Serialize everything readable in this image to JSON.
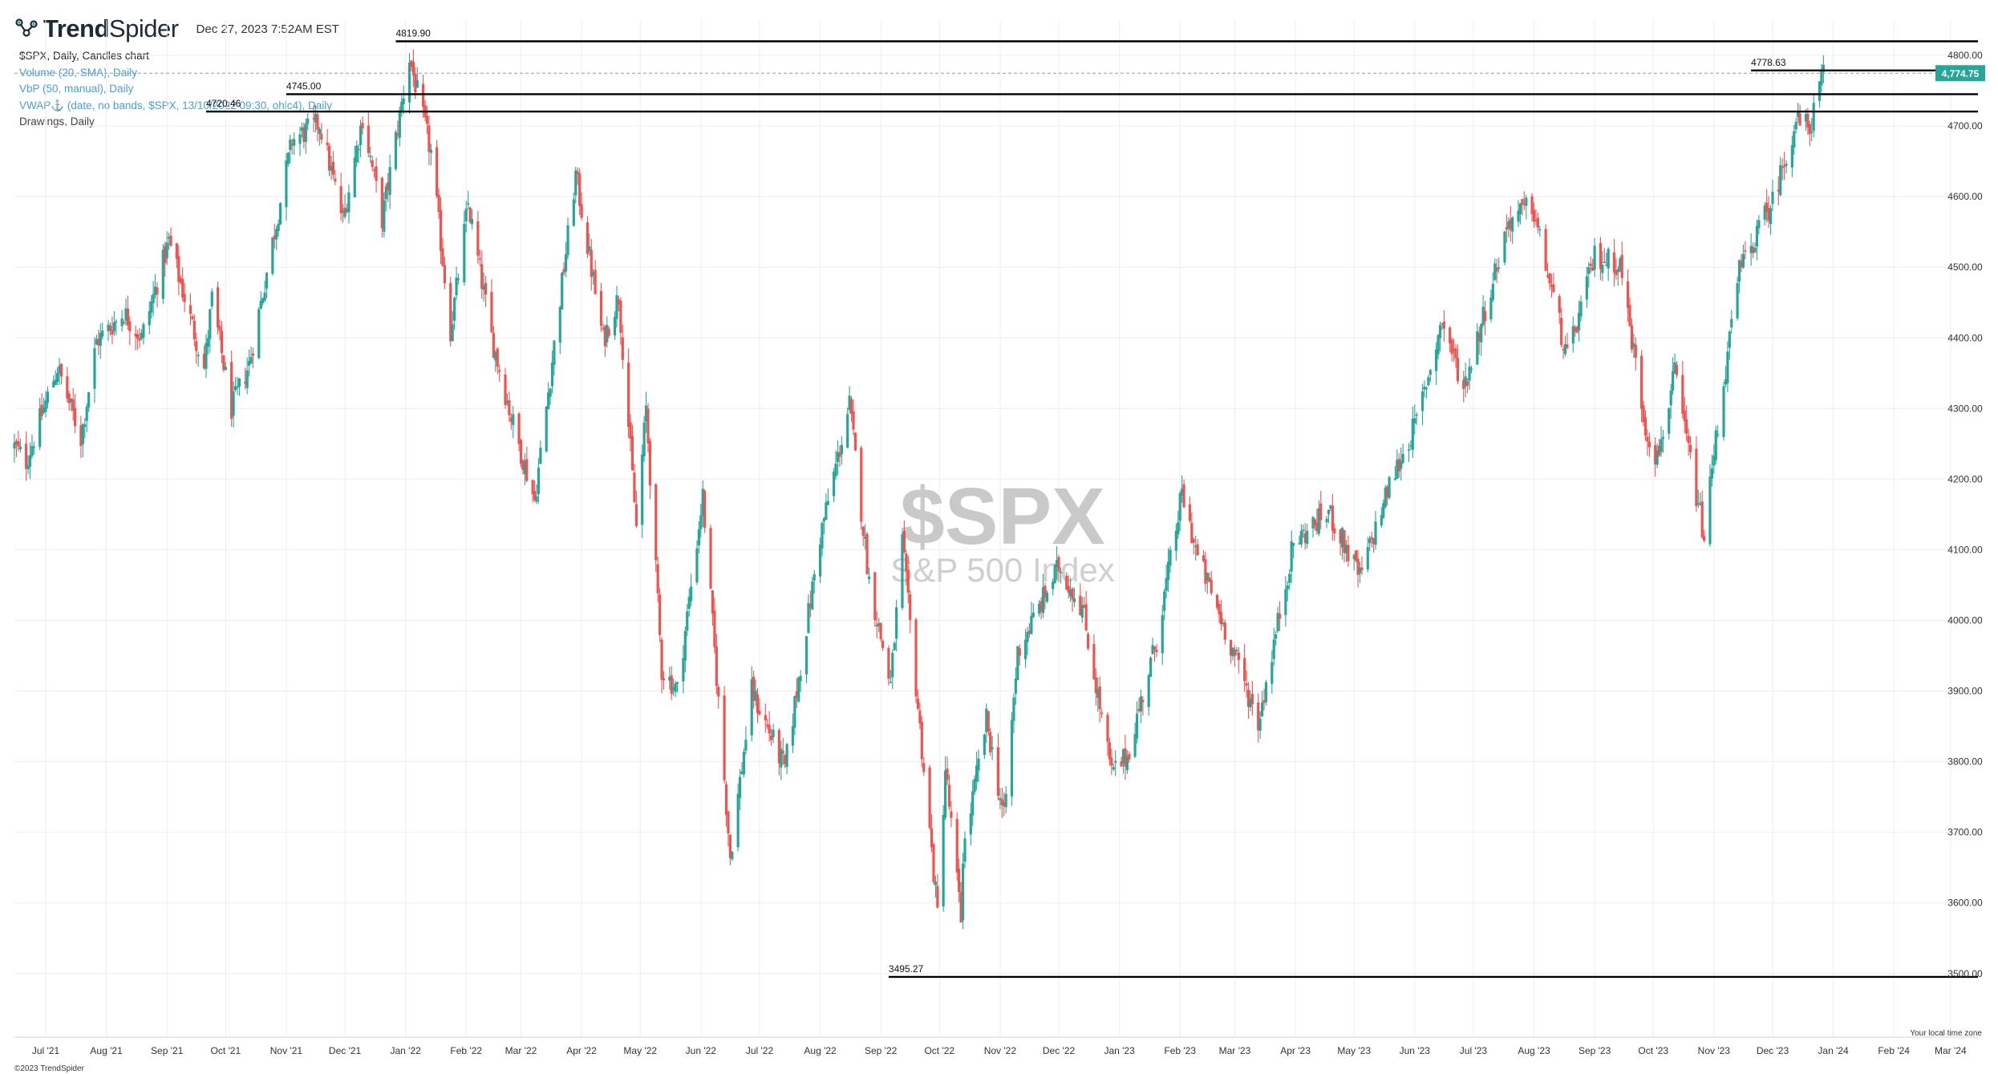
{
  "header": {
    "brand_prefix": "Trend",
    "brand_suffix": "Spider",
    "timestamp": "Dec 27, 2023 7:52AM EST"
  },
  "legend": {
    "main": "$SPX, Daily, Candles chart",
    "indicators": [
      "Volume (20, SMA), Daily",
      "VbP (50, manual), Daily",
      "VWAP⚓ (date, no bands, $SPX, 13/10/2022 09:30, ohlc4), Daily"
    ],
    "drawings": "Drawings, Daily"
  },
  "footer": {
    "copyright": "©2023 TrendSpider",
    "timezone_note": "Your local time zone"
  },
  "colors": {
    "up": "#26a69a",
    "down": "#ef5350",
    "price_badge": "#26a69a",
    "grid": "#eeeeee",
    "levels": "#000000"
  },
  "chart_data": {
    "type": "candlestick",
    "title": "$SPX",
    "subtitle": "S&P 500 Index",
    "interval": "Daily",
    "ylim": [
      3410,
      4850
    ],
    "y_ticks": [
      3500,
      3600,
      3700,
      3800,
      3900,
      4000,
      4100,
      4200,
      4300,
      4400,
      4500,
      4600,
      4700,
      4800
    ],
    "y_tick_labels": [
      "3500.00",
      "3600.00",
      "3700.00",
      "3800.00",
      "3900.00",
      "4000.00",
      "4100.00",
      "4200.00",
      "4300.00",
      "4400.00",
      "4500.00",
      "4600.00",
      "4700.00",
      "4800.00"
    ],
    "x_range": [
      "2021-06-15",
      "2024-03-15"
    ],
    "x_ticks": [
      {
        "date": "2021-07-01",
        "label": "Jul '21"
      },
      {
        "date": "2021-08-01",
        "label": "Aug '21"
      },
      {
        "date": "2021-09-01",
        "label": "Sep '21"
      },
      {
        "date": "2021-10-01",
        "label": "Oct '21"
      },
      {
        "date": "2021-11-01",
        "label": "Nov '21"
      },
      {
        "date": "2021-12-01",
        "label": "Dec '21"
      },
      {
        "date": "2022-01-01",
        "label": "Jan '22"
      },
      {
        "date": "2022-02-01",
        "label": "Feb '22"
      },
      {
        "date": "2022-03-01",
        "label": "Mar '22"
      },
      {
        "date": "2022-04-01",
        "label": "Apr '22"
      },
      {
        "date": "2022-05-01",
        "label": "May '22"
      },
      {
        "date": "2022-06-01",
        "label": "Jun '22"
      },
      {
        "date": "2022-07-01",
        "label": "Jul '22"
      },
      {
        "date": "2022-08-01",
        "label": "Aug '22"
      },
      {
        "date": "2022-09-01",
        "label": "Sep '22"
      },
      {
        "date": "2022-10-01",
        "label": "Oct '22"
      },
      {
        "date": "2022-11-01",
        "label": "Nov '22"
      },
      {
        "date": "2022-12-01",
        "label": "Dec '22"
      },
      {
        "date": "2023-01-01",
        "label": "Jan '23"
      },
      {
        "date": "2023-02-01",
        "label": "Feb '23"
      },
      {
        "date": "2023-03-01",
        "label": "Mar '23"
      },
      {
        "date": "2023-04-01",
        "label": "Apr '23"
      },
      {
        "date": "2023-05-01",
        "label": "May '23"
      },
      {
        "date": "2023-06-01",
        "label": "Jun '23"
      },
      {
        "date": "2023-07-01",
        "label": "Jul '23"
      },
      {
        "date": "2023-08-01",
        "label": "Aug '23"
      },
      {
        "date": "2023-09-01",
        "label": "Sep '23"
      },
      {
        "date": "2023-10-01",
        "label": "Oct '23"
      },
      {
        "date": "2023-11-01",
        "label": "Nov '23"
      },
      {
        "date": "2023-12-01",
        "label": "Dec '23"
      },
      {
        "date": "2024-01-01",
        "label": "Jan '24"
      },
      {
        "date": "2024-02-01",
        "label": "Feb '24"
      },
      {
        "date": "2024-03-01",
        "label": "Mar '24"
      }
    ],
    "last_price": 4774.75,
    "last_price_label": "4,774.75",
    "price_anchors": [
      {
        "date": "2021-06-15",
        "price": 4246
      },
      {
        "date": "2021-06-21",
        "price": 4225
      },
      {
        "date": "2021-07-07",
        "price": 4358
      },
      {
        "date": "2021-07-19",
        "price": 4258
      },
      {
        "date": "2021-07-27",
        "price": 4395
      },
      {
        "date": "2021-08-10",
        "price": 4436
      },
      {
        "date": "2021-08-19",
        "price": 4400
      },
      {
        "date": "2021-09-02",
        "price": 4537
      },
      {
        "date": "2021-09-20",
        "price": 4357
      },
      {
        "date": "2021-09-24",
        "price": 4455
      },
      {
        "date": "2021-10-04",
        "price": 4300
      },
      {
        "date": "2021-10-13",
        "price": 4363
      },
      {
        "date": "2021-11-04",
        "price": 4680
      },
      {
        "date": "2021-11-18",
        "price": 4704
      },
      {
        "date": "2021-11-30",
        "price": 4567
      },
      {
        "date": "2021-12-10",
        "price": 4712
      },
      {
        "date": "2021-12-20",
        "price": 4568
      },
      {
        "date": "2022-01-03",
        "price": 4796
      },
      {
        "date": "2022-01-14",
        "price": 4662
      },
      {
        "date": "2022-01-24",
        "price": 4410
      },
      {
        "date": "2022-02-02",
        "price": 4589
      },
      {
        "date": "2022-02-14",
        "price": 4401
      },
      {
        "date": "2022-02-24",
        "price": 4288
      },
      {
        "date": "2022-03-08",
        "price": 4170
      },
      {
        "date": "2022-03-29",
        "price": 4631
      },
      {
        "date": "2022-04-12",
        "price": 4397
      },
      {
        "date": "2022-04-20",
        "price": 4459
      },
      {
        "date": "2022-04-29",
        "price": 4131
      },
      {
        "date": "2022-05-04",
        "price": 4300
      },
      {
        "date": "2022-05-12",
        "price": 3930
      },
      {
        "date": "2022-05-20",
        "price": 3901
      },
      {
        "date": "2022-06-02",
        "price": 4176
      },
      {
        "date": "2022-06-16",
        "price": 3666
      },
      {
        "date": "2022-06-27",
        "price": 3900
      },
      {
        "date": "2022-07-14",
        "price": 3790
      },
      {
        "date": "2022-08-01",
        "price": 4119
      },
      {
        "date": "2022-08-16",
        "price": 4305
      },
      {
        "date": "2022-08-26",
        "price": 4057
      },
      {
        "date": "2022-09-06",
        "price": 3908
      },
      {
        "date": "2022-09-12",
        "price": 4110
      },
      {
        "date": "2022-09-30",
        "price": 3585
      },
      {
        "date": "2022-10-04",
        "price": 3790
      },
      {
        "date": "2022-10-12",
        "price": 3577
      },
      {
        "date": "2022-10-13",
        "price": 3669
      },
      {
        "date": "2022-10-25",
        "price": 3859
      },
      {
        "date": "2022-11-03",
        "price": 3719
      },
      {
        "date": "2022-11-10",
        "price": 3956
      },
      {
        "date": "2022-12-01",
        "price": 4076
      },
      {
        "date": "2022-12-13",
        "price": 4019
      },
      {
        "date": "2022-12-28",
        "price": 3783
      },
      {
        "date": "2023-01-05",
        "price": 3808
      },
      {
        "date": "2023-01-20",
        "price": 3972
      },
      {
        "date": "2023-02-02",
        "price": 4179
      },
      {
        "date": "2023-02-10",
        "price": 4090
      },
      {
        "date": "2023-03-01",
        "price": 3951
      },
      {
        "date": "2023-03-13",
        "price": 3855
      },
      {
        "date": "2023-03-31",
        "price": 4109
      },
      {
        "date": "2023-04-18",
        "price": 4154
      },
      {
        "date": "2023-05-04",
        "price": 4061
      },
      {
        "date": "2023-05-19",
        "price": 4191
      },
      {
        "date": "2023-06-02",
        "price": 4282
      },
      {
        "date": "2023-06-15",
        "price": 4425
      },
      {
        "date": "2023-06-26",
        "price": 4328
      },
      {
        "date": "2023-07-19",
        "price": 4565
      },
      {
        "date": "2023-07-31",
        "price": 4588
      },
      {
        "date": "2023-08-18",
        "price": 4369
      },
      {
        "date": "2023-09-01",
        "price": 4515
      },
      {
        "date": "2023-09-14",
        "price": 4505
      },
      {
        "date": "2023-09-27",
        "price": 4274
      },
      {
        "date": "2023-10-03",
        "price": 4229
      },
      {
        "date": "2023-10-12",
        "price": 4349
      },
      {
        "date": "2023-10-27",
        "price": 4117
      },
      {
        "date": "2023-11-01",
        "price": 4237
      },
      {
        "date": "2023-11-14",
        "price": 4495
      },
      {
        "date": "2023-12-01",
        "price": 4594
      },
      {
        "date": "2023-12-13",
        "price": 4707
      },
      {
        "date": "2023-12-20",
        "price": 4698
      },
      {
        "date": "2023-12-27",
        "price": 4775
      }
    ],
    "levels": [
      {
        "price": 4819.9,
        "label": "4819.90",
        "from": "2021-12-27"
      },
      {
        "price": 4778.63,
        "label": "4778.63",
        "from": "2023-11-20"
      },
      {
        "price": 4745.0,
        "label": "4745.00",
        "from": "2021-11-01"
      },
      {
        "price": 4720.46,
        "label": "4720.46",
        "from": "2021-09-21"
      },
      {
        "price": 3495.27,
        "label": "3495.27",
        "from": "2022-09-05"
      }
    ]
  }
}
